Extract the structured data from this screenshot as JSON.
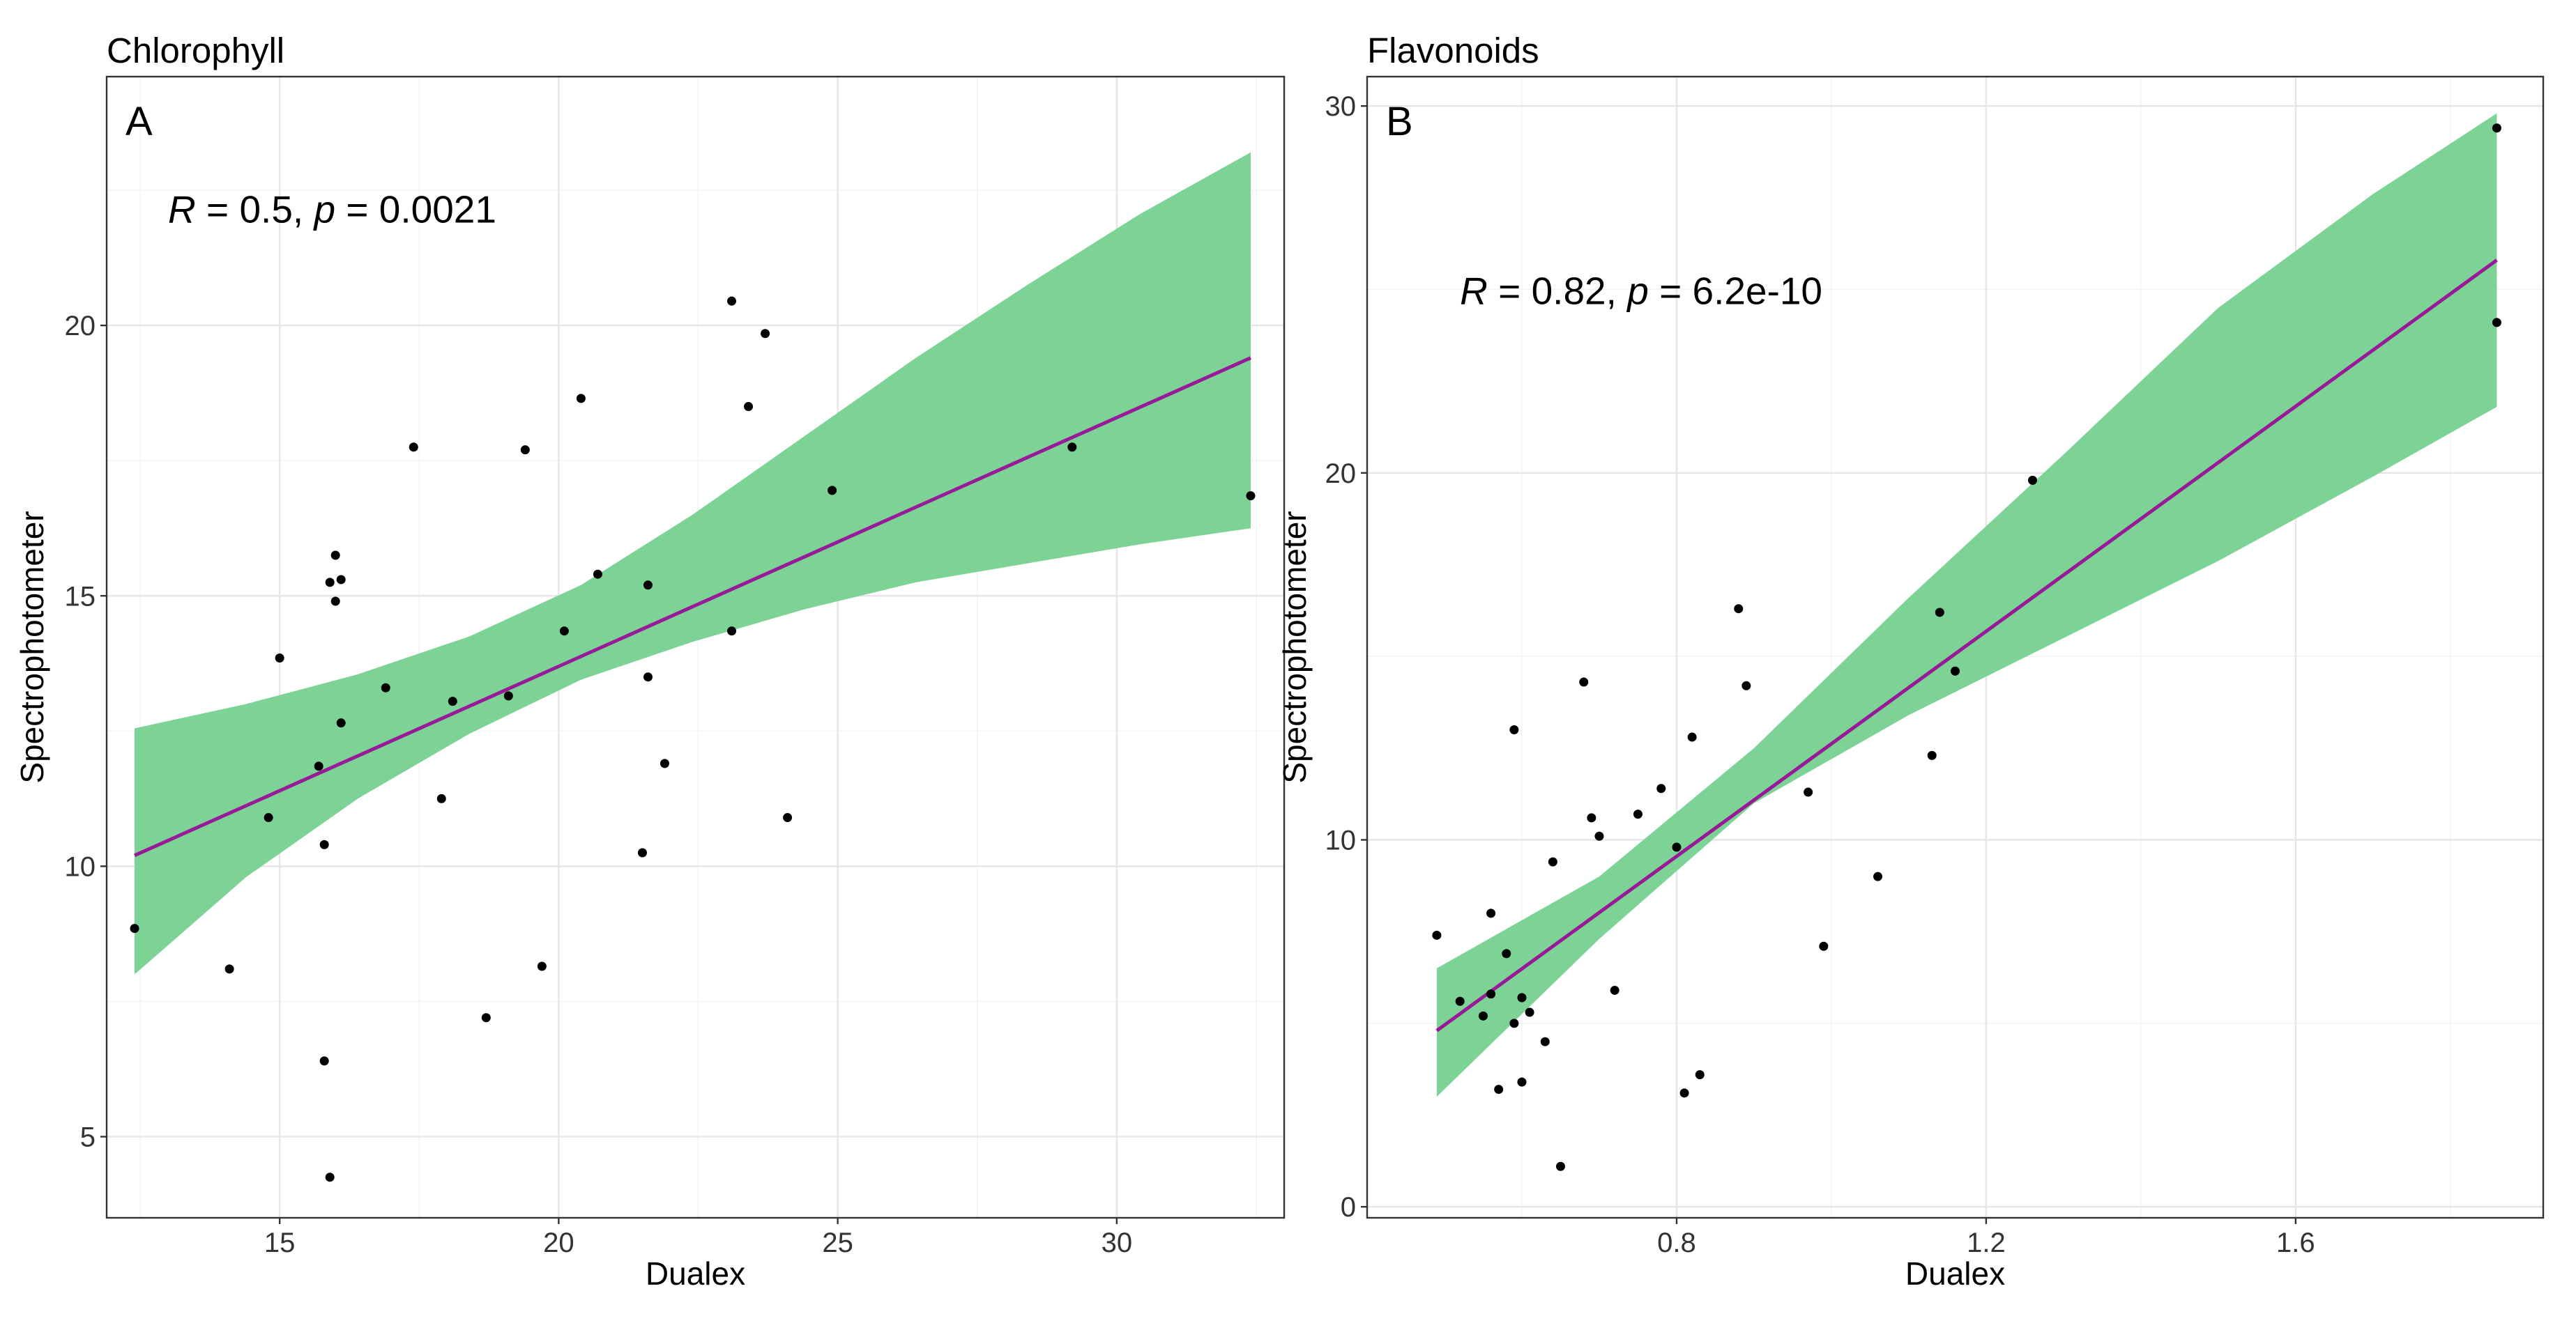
{
  "colors": {
    "band": "#7dd396",
    "line": "#991a99",
    "point": "#000000"
  },
  "chart_data": [
    {
      "type": "scatter",
      "title": "Chlorophyll",
      "panel_label": "A",
      "xlabel": "Dualex",
      "ylabel": "Spectrophotometer",
      "xlim": [
        11.9,
        33.0
      ],
      "ylim": [
        3.5,
        24.6
      ],
      "x_ticks": [
        15,
        20,
        25,
        30
      ],
      "y_ticks": [
        5,
        10,
        15,
        20
      ],
      "annotation": {
        "r_label": "R",
        "r_text": " = 0.5, ",
        "p_label": "p",
        "p_text": " = 0.0021",
        "pos": [
          13.0,
          21.9
        ]
      },
      "fit": {
        "x0": 12.4,
        "x1": 32.4,
        "y0": 10.2,
        "y1": 19.4
      },
      "band": [
        [
          12.4,
          8.0,
          12.55
        ],
        [
          14.4,
          9.8,
          13.0
        ],
        [
          16.4,
          11.25,
          13.55
        ],
        [
          18.4,
          12.45,
          14.25
        ],
        [
          20.4,
          13.45,
          15.2
        ],
        [
          22.4,
          14.15,
          16.5
        ],
        [
          24.4,
          14.75,
          17.95
        ],
        [
          26.4,
          15.25,
          19.4
        ],
        [
          28.4,
          15.6,
          20.75
        ],
        [
          30.4,
          15.95,
          22.05
        ],
        [
          32.4,
          16.25,
          23.2
        ]
      ],
      "points": [
        [
          12.4,
          8.85
        ],
        [
          14.1,
          8.1
        ],
        [
          14.8,
          10.9
        ],
        [
          15.0,
          13.85
        ],
        [
          15.7,
          11.85
        ],
        [
          15.8,
          10.4
        ],
        [
          15.8,
          6.4
        ],
        [
          15.9,
          15.25
        ],
        [
          15.9,
          4.25
        ],
        [
          16.0,
          15.75
        ],
        [
          16.0,
          14.9
        ],
        [
          16.1,
          15.3
        ],
        [
          16.1,
          12.65
        ],
        [
          16.9,
          13.3
        ],
        [
          17.4,
          17.75
        ],
        [
          17.9,
          11.25
        ],
        [
          18.1,
          13.05
        ],
        [
          18.7,
          7.2
        ],
        [
          19.1,
          13.15
        ],
        [
          19.4,
          17.7
        ],
        [
          19.7,
          8.15
        ],
        [
          20.1,
          14.35
        ],
        [
          20.4,
          18.65
        ],
        [
          20.7,
          15.4
        ],
        [
          21.5,
          10.25
        ],
        [
          21.6,
          15.2
        ],
        [
          21.6,
          13.5
        ],
        [
          21.9,
          11.9
        ],
        [
          23.1,
          20.45
        ],
        [
          23.1,
          14.35
        ],
        [
          23.4,
          18.5
        ],
        [
          23.7,
          19.85
        ],
        [
          24.1,
          10.9
        ],
        [
          24.9,
          16.95
        ],
        [
          29.2,
          17.75
        ],
        [
          32.4,
          16.85
        ]
      ]
    },
    {
      "type": "scatter",
      "title": "Flavonoids",
      "panel_label": "B",
      "xlabel": "Dualex",
      "ylabel": "Spectrophotometer",
      "xlim": [
        0.4,
        1.92
      ],
      "ylim": [
        -0.3,
        30.8
      ],
      "x_ticks": [
        0.8,
        1.2,
        1.6
      ],
      "y_ticks": [
        0,
        10,
        20,
        30
      ],
      "annotation": {
        "r_label": "R",
        "r_text": " = 0.82, ",
        "p_label": "p",
        "p_text": " = 6.2e-10",
        "pos": [
          0.52,
          24.6
        ]
      },
      "fit": {
        "x0": 0.49,
        "x1": 1.86,
        "y0": 4.8,
        "y1": 25.8
      },
      "band": [
        [
          0.49,
          3.0,
          6.5
        ],
        [
          0.7,
          7.3,
          9.0
        ],
        [
          0.9,
          11.0,
          12.5
        ],
        [
          1.1,
          13.4,
          16.6
        ],
        [
          1.3,
          15.5,
          20.5
        ],
        [
          1.5,
          17.6,
          24.5
        ],
        [
          1.7,
          19.9,
          27.6
        ],
        [
          1.86,
          21.8,
          29.8
        ]
      ],
      "points": [
        [
          0.49,
          7.4
        ],
        [
          0.52,
          5.6
        ],
        [
          0.55,
          5.2
        ],
        [
          0.56,
          8.0
        ],
        [
          0.56,
          5.8
        ],
        [
          0.57,
          3.2
        ],
        [
          0.58,
          6.9
        ],
        [
          0.59,
          13.0
        ],
        [
          0.59,
          5.0
        ],
        [
          0.6,
          5.7
        ],
        [
          0.6,
          3.4
        ],
        [
          0.61,
          5.3
        ],
        [
          0.63,
          4.5
        ],
        [
          0.64,
          9.4
        ],
        [
          0.65,
          1.1
        ],
        [
          0.68,
          14.3
        ],
        [
          0.69,
          10.6
        ],
        [
          0.7,
          10.1
        ],
        [
          0.72,
          5.9
        ],
        [
          0.75,
          10.7
        ],
        [
          0.78,
          11.4
        ],
        [
          0.8,
          9.8
        ],
        [
          0.81,
          3.1
        ],
        [
          0.82,
          12.8
        ],
        [
          0.83,
          3.6
        ],
        [
          0.88,
          16.3
        ],
        [
          0.89,
          14.2
        ],
        [
          0.97,
          11.3
        ],
        [
          0.99,
          7.1
        ],
        [
          1.06,
          9.0
        ],
        [
          1.13,
          12.3
        ],
        [
          1.14,
          16.2
        ],
        [
          1.16,
          14.6
        ],
        [
          1.26,
          19.8
        ],
        [
          1.86,
          29.4
        ],
        [
          1.86,
          24.1
        ]
      ]
    }
  ]
}
